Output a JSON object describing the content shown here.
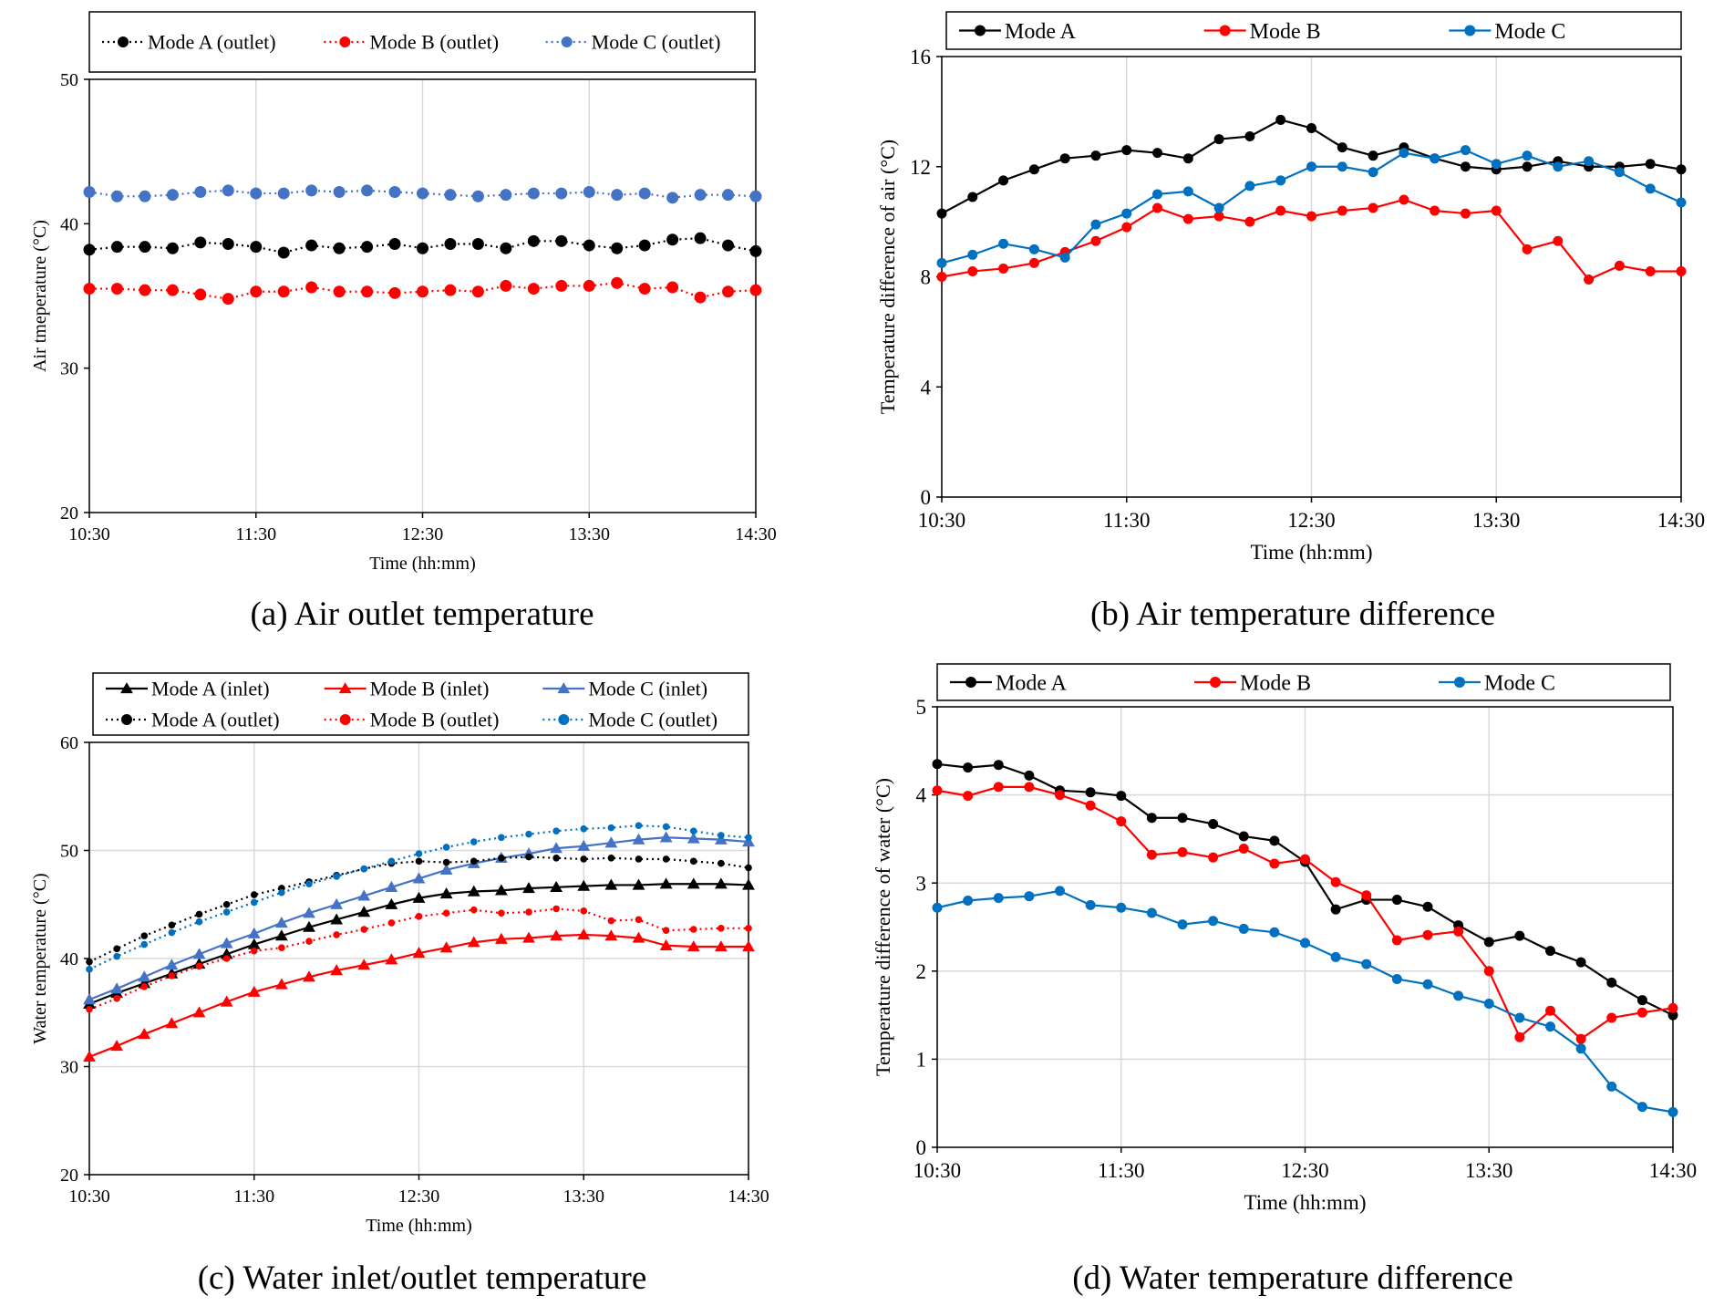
{
  "figure_captions": {
    "a": "(a) Air outlet temperature",
    "b": "(b) Air temperature difference",
    "c": "(c) Water inlet/outlet temperature",
    "d": "(d) Water temperature difference"
  },
  "colors": {
    "black": "#000000",
    "red": "#ff0000",
    "blue_light": "#4472c4",
    "blue": "#0070c0",
    "grid": "#d9d9d9"
  },
  "chart_data": [
    {
      "id": "a",
      "type": "line",
      "title": "",
      "xlabel": "Time (hh:mm)",
      "ylabel": "Air tmeperature (°C)",
      "xticks": [
        "10:30",
        "11:30",
        "12:30",
        "13:30",
        "14:30"
      ],
      "x_range_minutes": [
        0,
        240
      ],
      "ylim": [
        20,
        50
      ],
      "yticks": [
        20,
        30,
        40,
        50
      ],
      "grid": "vertical",
      "legend_position": "top",
      "series": [
        {
          "name": "Mode A (outlet)",
          "color": "#000000",
          "style": "dotted",
          "marker": "circle",
          "x": [
            0,
            10,
            20,
            30,
            40,
            50,
            60,
            70,
            80,
            90,
            100,
            110,
            120,
            130,
            140,
            150,
            160,
            170,
            180,
            190,
            200,
            210,
            220,
            230,
            240
          ],
          "values": [
            38.2,
            38.4,
            38.4,
            38.3,
            38.7,
            38.6,
            38.4,
            38.0,
            38.5,
            38.3,
            38.4,
            38.6,
            38.3,
            38.6,
            38.6,
            38.3,
            38.8,
            38.8,
            38.5,
            38.3,
            38.5,
            38.9,
            39.0,
            38.5,
            38.1
          ]
        },
        {
          "name": "Mode B (outlet)",
          "color": "#ff0000",
          "style": "dotted",
          "marker": "circle",
          "x": [
            0,
            10,
            20,
            30,
            40,
            50,
            60,
            70,
            80,
            90,
            100,
            110,
            120,
            130,
            140,
            150,
            160,
            170,
            180,
            190,
            200,
            210,
            220,
            230,
            240
          ],
          "values": [
            35.5,
            35.5,
            35.4,
            35.4,
            35.1,
            34.8,
            35.3,
            35.3,
            35.6,
            35.3,
            35.3,
            35.2,
            35.3,
            35.4,
            35.3,
            35.7,
            35.5,
            35.7,
            35.7,
            35.9,
            35.5,
            35.6,
            34.9,
            35.3,
            35.4
          ]
        },
        {
          "name": "Mode C (outlet)",
          "color": "#4472c4",
          "style": "dotted",
          "marker": "circle",
          "x": [
            0,
            10,
            20,
            30,
            40,
            50,
            60,
            70,
            80,
            90,
            100,
            110,
            120,
            130,
            140,
            150,
            160,
            170,
            180,
            190,
            200,
            210,
            220,
            230,
            240
          ],
          "values": [
            42.2,
            41.9,
            41.9,
            42.0,
            42.2,
            42.3,
            42.1,
            42.1,
            42.3,
            42.2,
            42.3,
            42.2,
            42.1,
            42.0,
            41.9,
            42.0,
            42.1,
            42.1,
            42.2,
            42.0,
            42.1,
            41.8,
            42.0,
            42.0,
            41.9
          ]
        }
      ]
    },
    {
      "id": "b",
      "type": "line",
      "title": "",
      "xlabel": "Time (hh:mm)",
      "ylabel": "Temperature difference of air (°C)",
      "xticks": [
        "10:30",
        "11:30",
        "12:30",
        "13:30",
        "14:30"
      ],
      "x_range_minutes": [
        0,
        240
      ],
      "ylim": [
        0,
        16
      ],
      "yticks": [
        0,
        4,
        8,
        12,
        16
      ],
      "grid": "vertical",
      "legend_position": "top",
      "series": [
        {
          "name": "Mode A",
          "color": "#000000",
          "style": "solid",
          "marker": "circle",
          "x": [
            0,
            10,
            20,
            30,
            40,
            50,
            60,
            70,
            80,
            90,
            100,
            110,
            120,
            130,
            140,
            150,
            160,
            170,
            180,
            190,
            200,
            210,
            220,
            230,
            240
          ],
          "values": [
            10.3,
            10.9,
            11.5,
            11.9,
            12.3,
            12.4,
            12.6,
            12.5,
            12.3,
            13.0,
            13.1,
            13.7,
            13.4,
            12.7,
            12.4,
            12.7,
            12.3,
            12.0,
            11.9,
            12.0,
            12.2,
            12.0,
            12.0,
            12.1,
            11.9
          ]
        },
        {
          "name": "Mode B",
          "color": "#ff0000",
          "style": "solid",
          "marker": "circle",
          "x": [
            0,
            10,
            20,
            30,
            40,
            50,
            60,
            70,
            80,
            90,
            100,
            110,
            120,
            130,
            140,
            150,
            160,
            170,
            180,
            190,
            200,
            210,
            220,
            230,
            240
          ],
          "values": [
            8.0,
            8.2,
            8.3,
            8.5,
            8.9,
            9.3,
            9.8,
            10.5,
            10.1,
            10.2,
            10.0,
            10.4,
            10.2,
            10.4,
            10.5,
            10.8,
            10.4,
            10.3,
            10.4,
            9.0,
            9.3,
            7.9,
            8.4,
            8.2,
            8.2
          ]
        },
        {
          "name": "Mode C",
          "color": "#0070c0",
          "style": "solid",
          "marker": "circle",
          "x": [
            0,
            10,
            20,
            30,
            40,
            50,
            60,
            70,
            80,
            90,
            100,
            110,
            120,
            130,
            140,
            150,
            160,
            170,
            180,
            190,
            200,
            210,
            220,
            230,
            240
          ],
          "values": [
            8.5,
            8.8,
            9.2,
            9.0,
            8.7,
            9.9,
            10.3,
            11.0,
            11.1,
            10.5,
            11.3,
            11.5,
            12.0,
            12.0,
            11.8,
            12.5,
            12.3,
            12.6,
            12.1,
            12.4,
            12.0,
            12.2,
            11.8,
            11.2,
            10.7
          ]
        }
      ]
    },
    {
      "id": "c",
      "type": "line",
      "title": "",
      "xlabel": "Time (hh:mm)",
      "ylabel": "Water temperature (°C)",
      "xticks": [
        "10:30",
        "11:30",
        "12:30",
        "13:30",
        "14:30"
      ],
      "x_range_minutes": [
        0,
        240
      ],
      "ylim": [
        20,
        60
      ],
      "yticks": [
        20,
        30,
        40,
        50,
        60
      ],
      "grid": "both",
      "legend_position": "top",
      "series": [
        {
          "name": "Mode A (inlet)",
          "color": "#000000",
          "style": "solid",
          "marker": "triangle",
          "x": [
            0,
            10,
            20,
            30,
            40,
            50,
            60,
            70,
            80,
            90,
            100,
            110,
            120,
            130,
            140,
            150,
            160,
            170,
            180,
            190,
            200,
            210,
            220,
            230,
            240
          ],
          "values": [
            35.8,
            36.8,
            37.7,
            38.6,
            39.5,
            40.4,
            41.3,
            42.1,
            42.9,
            43.6,
            44.3,
            45.0,
            45.6,
            46.0,
            46.2,
            46.3,
            46.5,
            46.6,
            46.7,
            46.8,
            46.8,
            46.9,
            46.9,
            46.9,
            46.8
          ]
        },
        {
          "name": "Mode B (inlet)",
          "color": "#ff0000",
          "style": "solid",
          "marker": "triangle",
          "x": [
            0,
            10,
            20,
            30,
            40,
            50,
            60,
            70,
            80,
            90,
            100,
            110,
            120,
            130,
            140,
            150,
            160,
            170,
            180,
            190,
            200,
            210,
            220,
            230,
            240
          ],
          "values": [
            30.9,
            31.9,
            33.0,
            34.0,
            35.0,
            36.0,
            36.9,
            37.6,
            38.3,
            38.9,
            39.4,
            39.9,
            40.5,
            41.0,
            41.5,
            41.8,
            41.9,
            42.1,
            42.2,
            42.1,
            41.9,
            41.2,
            41.1,
            41.1,
            41.1
          ]
        },
        {
          "name": "Mode C (inlet)",
          "color": "#4472c4",
          "style": "solid",
          "marker": "triangle",
          "x": [
            0,
            10,
            20,
            30,
            40,
            50,
            60,
            70,
            80,
            90,
            100,
            110,
            120,
            130,
            140,
            150,
            160,
            170,
            180,
            190,
            200,
            210,
            220,
            230,
            240
          ],
          "values": [
            36.2,
            37.2,
            38.3,
            39.4,
            40.4,
            41.4,
            42.3,
            43.3,
            44.2,
            45.0,
            45.8,
            46.6,
            47.4,
            48.2,
            48.8,
            49.3,
            49.7,
            50.2,
            50.4,
            50.7,
            51.0,
            51.2,
            51.1,
            51.0,
            50.8
          ]
        },
        {
          "name": "Mode A (outlet)",
          "color": "#000000",
          "style": "dotted",
          "marker": "circle",
          "x": [
            0,
            10,
            20,
            30,
            40,
            50,
            60,
            70,
            80,
            90,
            100,
            110,
            120,
            130,
            140,
            150,
            160,
            170,
            180,
            190,
            200,
            210,
            220,
            230,
            240
          ],
          "values": [
            39.7,
            40.9,
            42.1,
            43.1,
            44.1,
            45.0,
            45.9,
            46.5,
            47.1,
            47.7,
            48.3,
            48.8,
            49.0,
            48.9,
            49.0,
            49.3,
            49.4,
            49.3,
            49.2,
            49.3,
            49.2,
            49.2,
            49.0,
            48.8,
            48.4
          ]
        },
        {
          "name": "Mode B (outlet)",
          "color": "#ff0000",
          "style": "dotted",
          "marker": "circle",
          "x": [
            0,
            10,
            20,
            30,
            40,
            50,
            60,
            70,
            80,
            90,
            100,
            110,
            120,
            130,
            140,
            150,
            160,
            170,
            180,
            190,
            200,
            210,
            220,
            230,
            240
          ],
          "values": [
            35.3,
            36.3,
            37.4,
            38.4,
            39.3,
            40.0,
            40.7,
            41.0,
            41.6,
            42.2,
            42.7,
            43.3,
            43.9,
            44.2,
            44.5,
            44.2,
            44.3,
            44.6,
            44.4,
            43.5,
            43.6,
            42.6,
            42.7,
            42.8,
            42.8
          ]
        },
        {
          "name": "Mode C (outlet)",
          "color": "#0070c0",
          "style": "dotted",
          "marker": "circle",
          "x": [
            0,
            10,
            20,
            30,
            40,
            50,
            60,
            70,
            80,
            90,
            100,
            110,
            120,
            130,
            140,
            150,
            160,
            170,
            180,
            190,
            200,
            210,
            220,
            230,
            240
          ],
          "values": [
            39.0,
            40.2,
            41.3,
            42.4,
            43.4,
            44.3,
            45.2,
            46.1,
            46.9,
            47.6,
            48.3,
            49.0,
            49.7,
            50.3,
            50.8,
            51.2,
            51.5,
            51.8,
            52.0,
            52.1,
            52.3,
            52.2,
            51.8,
            51.4,
            51.2
          ]
        }
      ]
    },
    {
      "id": "d",
      "type": "line",
      "title": "",
      "xlabel": "Time (hh:mm)",
      "ylabel": "Temperature difference of water (°C)",
      "xticks": [
        "10:30",
        "11:30",
        "12:30",
        "13:30",
        "14:30"
      ],
      "x_range_minutes": [
        0,
        240
      ],
      "ylim": [
        0,
        5
      ],
      "yticks": [
        0,
        1,
        2,
        3,
        4,
        5
      ],
      "grid": "both",
      "legend_position": "top",
      "series": [
        {
          "name": "Mode A",
          "color": "#000000",
          "style": "solid",
          "marker": "circle",
          "x": [
            0,
            10,
            20,
            30,
            40,
            50,
            60,
            70,
            80,
            90,
            100,
            110,
            120,
            130,
            140,
            150,
            160,
            170,
            180,
            190,
            200,
            210,
            220,
            230,
            240
          ],
          "values": [
            4.35,
            4.31,
            4.34,
            4.22,
            4.05,
            4.03,
            3.99,
            3.74,
            3.74,
            3.67,
            3.53,
            3.48,
            3.24,
            2.7,
            2.81,
            2.81,
            2.73,
            2.52,
            2.33,
            2.4,
            2.23,
            2.1,
            1.87,
            1.67,
            1.5
          ]
        },
        {
          "name": "Mode B",
          "color": "#ff0000",
          "style": "solid",
          "marker": "circle",
          "x": [
            0,
            10,
            20,
            30,
            40,
            50,
            60,
            70,
            80,
            90,
            100,
            110,
            120,
            130,
            140,
            150,
            160,
            170,
            180,
            190,
            200,
            210,
            220,
            230,
            240
          ],
          "values": [
            4.05,
            3.99,
            4.09,
            4.09,
            4.0,
            3.88,
            3.7,
            3.32,
            3.35,
            3.29,
            3.39,
            3.22,
            3.27,
            3.01,
            2.86,
            2.35,
            2.41,
            2.45,
            2.0,
            1.25,
            1.55,
            1.23,
            1.47,
            1.53,
            1.58
          ]
        },
        {
          "name": "Mode C",
          "color": "#0070c0",
          "style": "solid",
          "marker": "circle",
          "x": [
            0,
            10,
            20,
            30,
            40,
            50,
            60,
            70,
            80,
            90,
            100,
            110,
            120,
            130,
            140,
            150,
            160,
            170,
            180,
            190,
            200,
            210,
            220,
            230,
            240
          ],
          "values": [
            2.72,
            2.8,
            2.83,
            2.85,
            2.91,
            2.75,
            2.72,
            2.66,
            2.53,
            2.57,
            2.48,
            2.44,
            2.32,
            2.16,
            2.08,
            1.91,
            1.85,
            1.72,
            1.63,
            1.47,
            1.37,
            1.12,
            0.69,
            0.46,
            0.4
          ]
        }
      ]
    }
  ]
}
